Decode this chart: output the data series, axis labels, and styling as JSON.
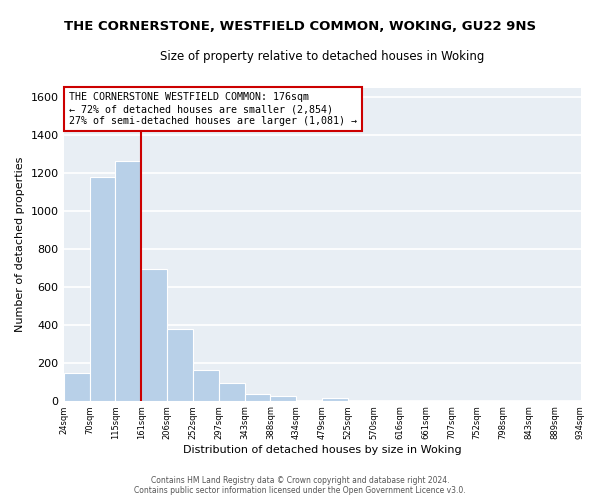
{
  "title": "THE CORNERSTONE, WESTFIELD COMMON, WOKING, GU22 9NS",
  "subtitle": "Size of property relative to detached houses in Woking",
  "xlabel": "Distribution of detached houses by size in Woking",
  "ylabel": "Number of detached properties",
  "bar_color": "#b8d0e8",
  "background_color": "#e8eef4",
  "grid_color": "white",
  "bin_edges": [
    24,
    70,
    115,
    161,
    206,
    252,
    297,
    343,
    388,
    434,
    479,
    525,
    570,
    616,
    661,
    707,
    752,
    798,
    843,
    889,
    934
  ],
  "bin_labels": [
    "24sqm",
    "70sqm",
    "115sqm",
    "161sqm",
    "206sqm",
    "252sqm",
    "297sqm",
    "343sqm",
    "388sqm",
    "434sqm",
    "479sqm",
    "525sqm",
    "570sqm",
    "616sqm",
    "661sqm",
    "707sqm",
    "752sqm",
    "798sqm",
    "843sqm",
    "889sqm",
    "934sqm"
  ],
  "bar_heights": [
    148,
    1180,
    1265,
    693,
    375,
    160,
    93,
    37,
    22,
    0,
    15,
    0,
    0,
    0,
    0,
    0,
    0,
    0,
    0,
    0
  ],
  "ylim": [
    0,
    1650
  ],
  "yticks": [
    0,
    200,
    400,
    600,
    800,
    1000,
    1200,
    1400,
    1600
  ],
  "property_line_x": 161,
  "property_line_color": "#cc0000",
  "annotation_title": "THE CORNERSTONE WESTFIELD COMMON: 176sqm",
  "annotation_line1": "← 72% of detached houses are smaller (2,854)",
  "annotation_line2": "27% of semi-detached houses are larger (1,081) →",
  "footer_line1": "Contains HM Land Registry data © Crown copyright and database right 2024.",
  "footer_line2": "Contains public sector information licensed under the Open Government Licence v3.0."
}
